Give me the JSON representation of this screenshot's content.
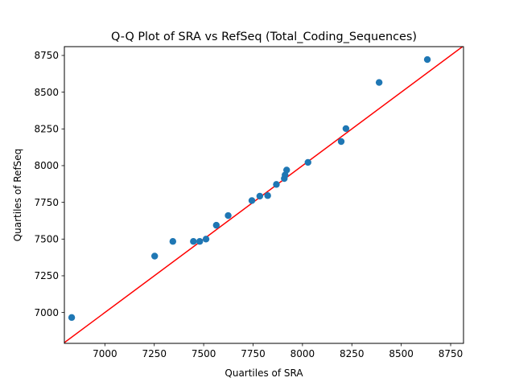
{
  "chart_data": {
    "type": "scatter",
    "title": "Q-Q Plot of SRA vs RefSeq (Total_Coding_Sequences)",
    "xlabel": "Quartiles of SRA",
    "ylabel": "Quartiles of RefSeq",
    "xlim": [
      6795,
      8815
    ],
    "ylim": [
      6790,
      8810
    ],
    "xticks": [
      7000,
      7250,
      7500,
      7750,
      8000,
      8250,
      8500,
      8750
    ],
    "yticks": [
      7000,
      7250,
      7500,
      7750,
      8000,
      8250,
      8500,
      8750
    ],
    "grid": false,
    "legend": "none",
    "colors": {
      "points": "#1f77b4",
      "reference_line": "#ff0000"
    },
    "reference_line": {
      "type": "y = x"
    },
    "series": [
      {
        "x": [
          6832,
          7252,
          7344,
          7448,
          7480,
          7512,
          7564,
          7624,
          7744,
          7784,
          7824,
          7868,
          7908,
          7912,
          7920,
          8028,
          8196,
          8220,
          8388,
          8632
        ],
        "y": [
          6966,
          7384,
          7484,
          7484,
          7484,
          7500,
          7594,
          7660,
          7762,
          7792,
          7796,
          7872,
          7912,
          7936,
          7970,
          8022,
          8164,
          8252,
          8566,
          8722
        ]
      }
    ]
  }
}
